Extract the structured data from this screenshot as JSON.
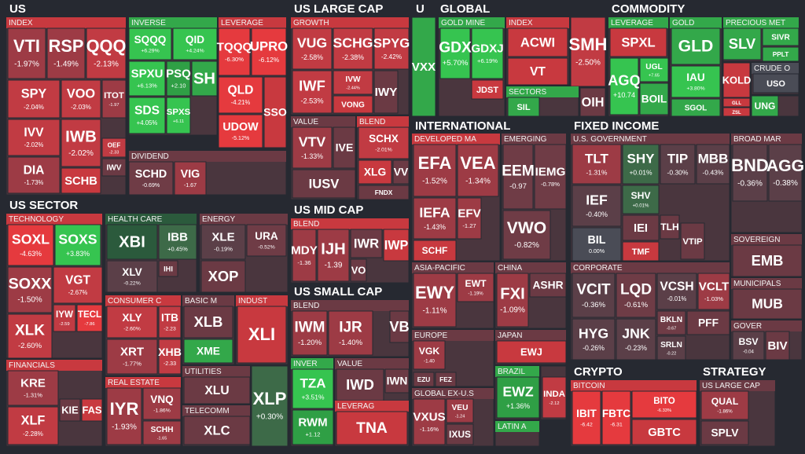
{
  "sections": [
    {
      "title": "US",
      "groups": [
        {
          "name": "INDEX",
          "tiles": [
            {
              "ticker": "VTI",
              "change": "-1.97%"
            },
            {
              "ticker": "RSP",
              "change": "-1.49%"
            },
            {
              "ticker": "QQQ",
              "change": "-2.13%"
            },
            {
              "ticker": "SPY",
              "change": "-2.04%"
            },
            {
              "ticker": "VOO",
              "change": "-2.03%"
            },
            {
              "ticker": "ITOT",
              "change": "-1.97"
            },
            {
              "ticker": "IVV",
              "change": "-2.02%"
            },
            {
              "ticker": "IWB",
              "change": "-2.02%"
            },
            {
              "ticker": "OEF",
              "change": "-2.33"
            },
            {
              "ticker": "DIA",
              "change": "-1.73%"
            },
            {
              "ticker": "SCHB"
            },
            {
              "ticker": "IWV"
            }
          ]
        },
        {
          "name": "INVERSE",
          "tiles": [
            {
              "ticker": "SQQQ",
              "change": "+6.29%"
            },
            {
              "ticker": "QID",
              "change": "+4.24%"
            },
            {
              "ticker": "SPXU",
              "change": "+6.13%"
            },
            {
              "ticker": "PSQ",
              "change": "+2.10"
            },
            {
              "ticker": "SH"
            },
            {
              "ticker": "SDS",
              "change": "+4.05%"
            },
            {
              "ticker": "SPXS",
              "change": "+6.11"
            }
          ]
        },
        {
          "name": "LEVERAGE",
          "tiles": [
            {
              "ticker": "TQQQ",
              "change": "-6.30%"
            },
            {
              "ticker": "UPRO",
              "change": "-6.12%"
            },
            {
              "ticker": "QLD",
              "change": "-4.21%"
            },
            {
              "ticker": "SSO"
            },
            {
              "ticker": "UDOW",
              "change": "-5.12%"
            }
          ]
        },
        {
          "name": "DIVIDEND",
          "tiles": [
            {
              "ticker": "SCHD",
              "change": "-0.69%"
            },
            {
              "ticker": "VIG",
              "change": "-1.67"
            }
          ]
        }
      ]
    },
    {
      "title": "US SECTOR",
      "groups": [
        {
          "name": "TECHNOLOGY",
          "tiles": [
            {
              "ticker": "SOXL",
              "change": "-4.63%"
            },
            {
              "ticker": "SOXS",
              "change": "+3.83%"
            },
            {
              "ticker": "SOXX",
              "change": "-1.50%"
            },
            {
              "ticker": "VGT",
              "change": "-2.67%"
            },
            {
              "ticker": "IYW",
              "change": "-2.59"
            },
            {
              "ticker": "TECL",
              "change": "-7.86"
            },
            {
              "ticker": "XLK",
              "change": "-2.60%"
            }
          ]
        },
        {
          "name": "HEALTH CARE",
          "tiles": [
            {
              "ticker": "XBI"
            },
            {
              "ticker": "IBB",
              "change": "+0.45%"
            },
            {
              "ticker": "XLV",
              "change": "-0.22%"
            },
            {
              "ticker": "IHI"
            }
          ]
        },
        {
          "name": "ENERGY",
          "tiles": [
            {
              "ticker": "XLE",
              "change": "-0.19%"
            },
            {
              "ticker": "URA",
              "change": "-0.52%"
            },
            {
              "ticker": "XOP"
            }
          ]
        },
        {
          "name": "CONSUMER C",
          "tiles": [
            {
              "ticker": "XLY",
              "change": "-2.60%"
            },
            {
              "ticker": "ITB",
              "change": "-2.23"
            },
            {
              "ticker": "XRT",
              "change": "-1.77%"
            },
            {
              "ticker": "XHB",
              "change": "-2.33"
            }
          ]
        },
        {
          "name": "BASIC M",
          "tiles": [
            {
              "ticker": "XLB"
            },
            {
              "ticker": "XME"
            }
          ]
        },
        {
          "name": "INDUST",
          "tiles": [
            {
              "ticker": "XLI"
            }
          ]
        },
        {
          "name": "UTILITIES",
          "tiles": [
            {
              "ticker": "XLU"
            }
          ]
        },
        {
          "name": "TELECOMM",
          "tiles": [
            {
              "ticker": "XLC"
            }
          ]
        },
        {
          "tiles": [
            {
              "ticker": "XLP",
              "change": "+0.30%"
            }
          ]
        },
        {
          "name": "FINANCIALS",
          "tiles": [
            {
              "ticker": "KRE",
              "change": "-1.31%"
            },
            {
              "ticker": "XLF",
              "change": "-2.28%"
            },
            {
              "ticker": "KIE"
            },
            {
              "ticker": "FAS"
            }
          ]
        },
        {
          "name": "REAL ESTATE",
          "tiles": [
            {
              "ticker": "IYR",
              "change": "-1.93%"
            },
            {
              "ticker": "VNQ",
              "change": "-1.86%"
            },
            {
              "ticker": "SCHH",
              "change": "-1.65"
            }
          ]
        }
      ]
    },
    {
      "title": "US LARGE CAP",
      "groups": [
        {
          "name": "GROWTH",
          "tiles": [
            {
              "ticker": "VUG",
              "change": "-2.58%"
            },
            {
              "ticker": "SCHG",
              "change": "-2.38%"
            },
            {
              "ticker": "SPYG",
              "change": "-2.42%"
            },
            {
              "ticker": "IWF",
              "change": "-2.53%"
            },
            {
              "ticker": "IVW",
              "change": "-2.44%"
            },
            {
              "ticker": "VONG"
            },
            {
              "ticker": "IWY"
            }
          ]
        },
        {
          "name": "VALUE",
          "tiles": [
            {
              "ticker": "VTV",
              "change": "-1.33%"
            },
            {
              "ticker": "IVE"
            },
            {
              "ticker": "IUSV"
            }
          ]
        },
        {
          "name": "BLEND",
          "tiles": [
            {
              "ticker": "SCHX",
              "change": "-2.01%"
            },
            {
              "ticker": "XLG"
            },
            {
              "ticker": "VV"
            },
            {
              "ticker": "FNDX"
            }
          ]
        }
      ]
    },
    {
      "title": "US MID CAP",
      "groups": [
        {
          "name": "BLEND",
          "tiles": [
            {
              "ticker": "MDY",
              "change": "-1.36"
            },
            {
              "ticker": "IJH",
              "change": "-1.39"
            },
            {
              "ticker": "IWR"
            },
            {
              "ticker": "VO"
            },
            {
              "ticker": "IWP"
            }
          ]
        }
      ]
    },
    {
      "title": "US SMALL CAP",
      "groups": [
        {
          "name": "BLEND",
          "tiles": [
            {
              "ticker": "IWM",
              "change": "-1.20%"
            },
            {
              "ticker": "IJR",
              "change": "-1.40%"
            },
            {
              "ticker": "VB"
            }
          ]
        },
        {
          "name": "INVER",
          "tiles": [
            {
              "ticker": "TZA",
              "change": "+3.51%"
            },
            {
              "ticker": "RWM",
              "change": "+1.12"
            }
          ]
        },
        {
          "name": "VALUE",
          "tiles": [
            {
              "ticker": "IWD"
            },
            {
              "ticker": "IWN"
            }
          ]
        },
        {
          "name": "LEVERAG",
          "tiles": [
            {
              "ticker": "TNA"
            }
          ]
        }
      ]
    },
    {
      "title": "U",
      "groups": [
        {
          "tiles": [
            {
              "ticker": "VXX"
            }
          ]
        }
      ]
    },
    {
      "title": "GLOBAL",
      "groups": [
        {
          "name": "GOLD MINE",
          "tiles": [
            {
              "ticker": "GDX",
              "change": "+5.70%"
            },
            {
              "ticker": "GDXJ",
              "change": "+6.19%"
            },
            {
              "ticker": "JDST"
            }
          ]
        },
        {
          "name": "INDEX",
          "tiles": [
            {
              "ticker": "ACWI"
            },
            {
              "ticker": "VT"
            }
          ]
        },
        {
          "tiles": [
            {
              "ticker": "SMH",
              "change": "-2.50%"
            }
          ]
        },
        {
          "name": "SECTORS",
          "tiles": [
            {
              "ticker": "SIL"
            }
          ]
        },
        {
          "tiles": [
            {
              "ticker": "OIH"
            }
          ]
        }
      ]
    },
    {
      "title": "COMMODITY",
      "groups": [
        {
          "name": "LEVERAGE",
          "tiles": [
            {
              "ticker": "SPXL"
            },
            {
              "ticker": "AGQ",
              "change": "+10.74"
            },
            {
              "ticker": "UGL",
              "change": "+7.65"
            },
            {
              "ticker": "BOIL"
            }
          ]
        },
        {
          "name": "GOLD",
          "tiles": [
            {
              "ticker": "GLD"
            },
            {
              "ticker": "IAU",
              "change": "+3.80%"
            },
            {
              "ticker": "SGOL"
            }
          ]
        },
        {
          "name": "PRECIOUS MET",
          "tiles": [
            {
              "ticker": "SLV"
            },
            {
              "ticker": "SIVR"
            },
            {
              "ticker": "PPLT"
            }
          ]
        },
        {
          "tiles": [
            {
              "ticker": "KOLD"
            },
            {
              "ticker": "GLL"
            },
            {
              "ticker": "ZSL"
            }
          ]
        },
        {
          "name": "CRUDE O",
          "tiles": [
            {
              "ticker": "USO"
            }
          ]
        },
        {
          "tiles": [
            {
              "ticker": "UNG"
            }
          ]
        }
      ]
    },
    {
      "title": "INTERNATIONAL",
      "groups": [
        {
          "name": "DEVELOPED MA",
          "tiles": [
            {
              "ticker": "EFA",
              "change": "-1.52%"
            },
            {
              "ticker": "VEA",
              "change": "-1.34%"
            },
            {
              "ticker": "IEFA",
              "change": "-1.43%"
            },
            {
              "ticker": "EFV",
              "change": "-1.27"
            },
            {
              "ticker": "SCHF"
            }
          ]
        },
        {
          "name": "EMERGING",
          "tiles": [
            {
              "ticker": "EEM",
              "change": "-0.97"
            },
            {
              "ticker": "IEMG",
              "change": "-0.78%"
            },
            {
              "ticker": "VWO",
              "change": "-0.82%"
            }
          ]
        },
        {
          "name": "ASIA-PACIFIC",
          "tiles": [
            {
              "ticker": "EWY",
              "change": "-1.11%"
            },
            {
              "ticker": "EWT",
              "change": "-1.19%"
            }
          ]
        },
        {
          "name": "CHINA",
          "tiles": [
            {
              "ticker": "FXI",
              "change": "-1.09%"
            },
            {
              "ticker": "ASHR"
            }
          ]
        },
        {
          "name": "EUROPE",
          "tiles": [
            {
              "ticker": "VGK",
              "change": "-1.40"
            },
            {
              "ticker": "EZU"
            },
            {
              "ticker": "FEZ"
            }
          ]
        },
        {
          "name": "JAPAN",
          "tiles": [
            {
              "ticker": "EWJ"
            }
          ]
        },
        {
          "name": "GLOBAL EX-U.S",
          "tiles": [
            {
              "ticker": "VXUS",
              "change": "-1.16%"
            },
            {
              "ticker": "VEU",
              "change": "-1.24"
            },
            {
              "ticker": "IXUS"
            }
          ]
        },
        {
          "name": "BRAZIL",
          "tiles": [
            {
              "ticker": "EWZ",
              "change": "+1.36%"
            }
          ]
        },
        {
          "tiles": [
            {
              "ticker": "INDA",
              "change": "-2.12"
            }
          ]
        },
        {
          "name": "LATIN A",
          "tiles": []
        }
      ]
    },
    {
      "title": "FIXED INCOME",
      "groups": [
        {
          "name": "U.S. GOVERNMENT",
          "tiles": [
            {
              "ticker": "TLT",
              "change": "-1.31%"
            },
            {
              "ticker": "SHY",
              "change": "+0.01%"
            },
            {
              "ticker": "TIP",
              "change": "-0.30%"
            },
            {
              "ticker": "MBB",
              "change": "-0.43%"
            },
            {
              "ticker": "IEF",
              "change": "-0.40%"
            },
            {
              "ticker": "SHV",
              "change": "+0.01%"
            },
            {
              "ticker": "IEI"
            },
            {
              "ticker": "TLH"
            },
            {
              "ticker": "BIL",
              "change": "0.00%"
            },
            {
              "ticker": "TMF"
            },
            {
              "ticker": "VTIP"
            }
          ]
        },
        {
          "name": "BROAD MAR",
          "tiles": [
            {
              "ticker": "BND",
              "change": "-0.36%"
            },
            {
              "ticker": "AGG",
              "change": "-0.38%"
            }
          ]
        },
        {
          "name": "SOVEREIGN",
          "tiles": [
            {
              "ticker": "EMB"
            }
          ]
        },
        {
          "name": "CORPORATE",
          "tiles": [
            {
              "ticker": "VCIT",
              "change": "-0.36%"
            },
            {
              "ticker": "LQD",
              "change": "-0.61%"
            },
            {
              "ticker": "VCSH",
              "change": "-0.01%"
            },
            {
              "ticker": "VCLT",
              "change": "-1.03%"
            },
            {
              "ticker": "HYG",
              "change": "-0.26%"
            },
            {
              "ticker": "JNK",
              "change": "-0.23%"
            },
            {
              "ticker": "BKLN",
              "change": "-0.67"
            },
            {
              "ticker": "SRLN",
              "change": "-0.22"
            },
            {
              "ticker": "PFF"
            }
          ]
        },
        {
          "name": "MUNICIPALS",
          "tiles": [
            {
              "ticker": "MUB"
            }
          ]
        },
        {
          "name": "GOVER",
          "tiles": [
            {
              "ticker": "BSV",
              "change": "-0.04"
            },
            {
              "ticker": "BIV"
            }
          ]
        }
      ]
    },
    {
      "title": "CRYPTO",
      "groups": [
        {
          "name": "BITCOIN",
          "tiles": [
            {
              "ticker": "IBIT",
              "change": "-6.42"
            },
            {
              "ticker": "FBTC",
              "change": "-6.31"
            },
            {
              "ticker": "BITO",
              "change": "-6.33%"
            },
            {
              "ticker": "GBTC"
            }
          ]
        }
      ]
    },
    {
      "title": "STRATEGY",
      "groups": [
        {
          "name": "US LARGE CAP",
          "tiles": [
            {
              "ticker": "QUAL",
              "change": "-1.86%"
            },
            {
              "ticker": "SPLV"
            }
          ]
        }
      ]
    }
  ]
}
